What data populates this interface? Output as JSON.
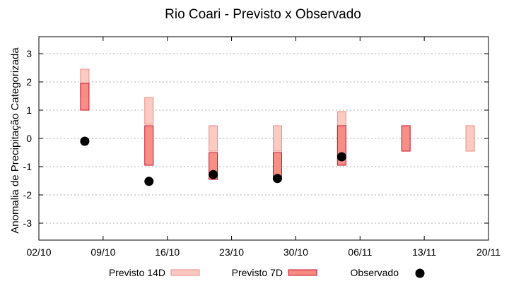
{
  "chart_data": {
    "type": "range-bar",
    "title": "Rio Coari - Previsto x Observado",
    "xlabel": "",
    "ylabel": "Anomalia de Precipitação Categorizada",
    "xlim": [
      "2023-10-02",
      "2023-11-20"
    ],
    "ylim": [
      -3.6,
      3.6
    ],
    "x_ticks": [
      "02/10",
      "09/10",
      "16/10",
      "23/10",
      "30/10",
      "06/11",
      "13/11",
      "20/11"
    ],
    "x_tick_dates": [
      "2023-10-02",
      "2023-10-09",
      "2023-10-16",
      "2023-10-23",
      "2023-10-30",
      "2023-11-06",
      "2023-11-13",
      "2023-11-20"
    ],
    "y_ticks": [
      "3",
      "2",
      "1",
      "0",
      "-1",
      "-2",
      "-3"
    ],
    "y_tick_values": [
      3,
      2,
      1,
      0,
      -1,
      -2,
      -3
    ],
    "grid": true,
    "legend_position": "bottom",
    "series": [
      {
        "name": "Previsto 14D",
        "color": "#f9c8c0",
        "edge": "#f08a80",
        "ranges": [
          {
            "x": "2023-10-07",
            "low": 1.5,
            "high": 2.45
          },
          {
            "x": "2023-10-14",
            "low": 0.5,
            "high": 1.45
          },
          {
            "x": "2023-10-21",
            "low": -0.45,
            "high": 0.45
          },
          {
            "x": "2023-10-28",
            "low": -0.45,
            "high": 0.45
          },
          {
            "x": "2023-11-04",
            "low": -0.45,
            "high": 0.95
          },
          {
            "x": "2023-11-18",
            "low": -0.45,
            "high": 0.45
          }
        ]
      },
      {
        "name": "Previsto 7D",
        "color": "#f58a80",
        "edge": "#c8102e",
        "ranges": [
          {
            "x": "2023-10-07",
            "low": 1.0,
            "high": 1.95
          },
          {
            "x": "2023-10-14",
            "low": -0.95,
            "high": 0.45
          },
          {
            "x": "2023-10-21",
            "low": -1.45,
            "high": -0.5
          },
          {
            "x": "2023-10-28",
            "low": -1.45,
            "high": -0.5
          },
          {
            "x": "2023-11-04",
            "low": -0.95,
            "high": 0.45
          },
          {
            "x": "2023-11-11",
            "low": -0.45,
            "high": 0.45
          }
        ]
      },
      {
        "name": "Observado",
        "color": "#000000",
        "points": [
          {
            "x": "2023-10-07",
            "y": -0.1
          },
          {
            "x": "2023-10-14",
            "y": -1.52
          },
          {
            "x": "2023-10-21",
            "y": -1.28
          },
          {
            "x": "2023-10-28",
            "y": -1.42
          },
          {
            "x": "2023-11-04",
            "y": -0.65
          }
        ]
      }
    ]
  }
}
